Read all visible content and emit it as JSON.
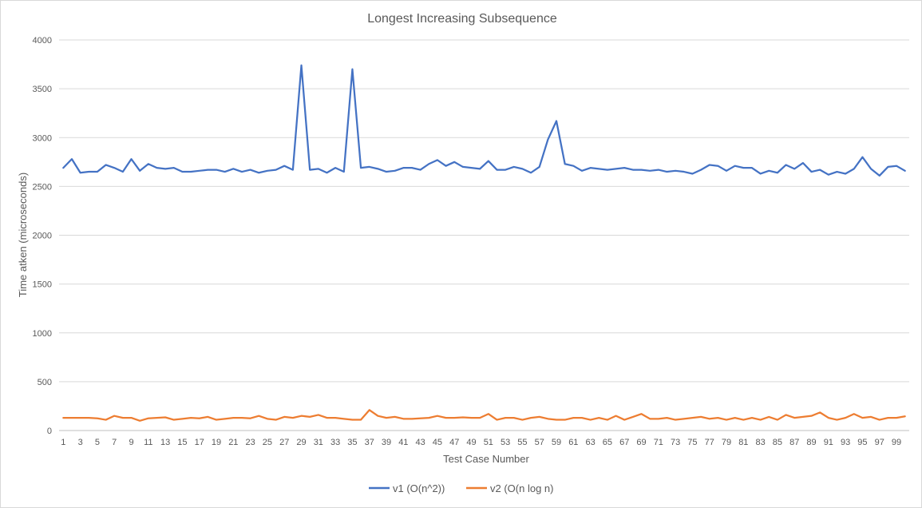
{
  "chart_data": {
    "type": "line",
    "title": "Longest Increasing Subsequence",
    "xlabel": "Test Case Number",
    "ylabel": "Time atken (microseconds)",
    "ylim": [
      0,
      4000
    ],
    "yticks": [
      0,
      500,
      1000,
      1500,
      2000,
      2500,
      3000,
      3500,
      4000
    ],
    "x": [
      1,
      2,
      3,
      4,
      5,
      6,
      7,
      8,
      9,
      10,
      11,
      12,
      13,
      14,
      15,
      16,
      17,
      18,
      19,
      20,
      21,
      22,
      23,
      24,
      25,
      26,
      27,
      28,
      29,
      30,
      31,
      32,
      33,
      34,
      35,
      36,
      37,
      38,
      39,
      40,
      41,
      42,
      43,
      44,
      45,
      46,
      47,
      48,
      49,
      50,
      51,
      52,
      53,
      54,
      55,
      56,
      57,
      58,
      59,
      60,
      61,
      62,
      63,
      64,
      65,
      66,
      67,
      68,
      69,
      70,
      71,
      72,
      73,
      74,
      75,
      76,
      77,
      78,
      79,
      80,
      81,
      82,
      83,
      84,
      85,
      86,
      87,
      88,
      89,
      90,
      91,
      92,
      93,
      94,
      95,
      96,
      97,
      98,
      99,
      100
    ],
    "xtick_labels": [
      "1",
      "3",
      "5",
      "7",
      "9",
      "11",
      "13",
      "15",
      "17",
      "19",
      "21",
      "23",
      "25",
      "27",
      "29",
      "31",
      "33",
      "35",
      "37",
      "39",
      "41",
      "43",
      "45",
      "47",
      "49",
      "51",
      "53",
      "55",
      "57",
      "59",
      "61",
      "63",
      "65",
      "67",
      "69",
      "71",
      "73",
      "75",
      "77",
      "79",
      "81",
      "83",
      "85",
      "87",
      "89",
      "91",
      "93",
      "95",
      "97",
      "99"
    ],
    "grid": true,
    "legend_position": "bottom",
    "series": [
      {
        "name": "v1 (O(n^2))",
        "color": "#4472c4",
        "values": [
          2690,
          2780,
          2640,
          2650,
          2650,
          2720,
          2690,
          2650,
          2780,
          2660,
          2730,
          2690,
          2680,
          2690,
          2650,
          2650,
          2660,
          2670,
          2670,
          2650,
          2680,
          2650,
          2670,
          2640,
          2660,
          2670,
          2710,
          2670,
          3740,
          2670,
          2680,
          2640,
          2690,
          2650,
          3700,
          2690,
          2700,
          2680,
          2650,
          2660,
          2690,
          2690,
          2670,
          2730,
          2770,
          2710,
          2750,
          2700,
          2690,
          2680,
          2760,
          2670,
          2670,
          2700,
          2680,
          2640,
          2700,
          2980,
          3170,
          2730,
          2710,
          2660,
          2690,
          2680,
          2670,
          2680,
          2690,
          2670,
          2670,
          2660,
          2670,
          2650,
          2660,
          2650,
          2630,
          2670,
          2720,
          2710,
          2660,
          2710,
          2690,
          2690,
          2630,
          2660,
          2640,
          2720,
          2680,
          2740,
          2650,
          2670,
          2620,
          2650,
          2630,
          2680,
          2800,
          2680,
          2610,
          2700,
          2710,
          2660
        ]
      },
      {
        "name": "v2 (O(n log n)",
        "color": "#ed7d31",
        "values": [
          130,
          130,
          130,
          130,
          125,
          110,
          150,
          130,
          130,
          100,
          125,
          130,
          135,
          110,
          120,
          130,
          125,
          140,
          110,
          120,
          130,
          130,
          125,
          150,
          120,
          110,
          140,
          130,
          150,
          140,
          160,
          130,
          130,
          120,
          110,
          110,
          210,
          150,
          130,
          140,
          120,
          120,
          125,
          130,
          150,
          130,
          130,
          135,
          130,
          130,
          170,
          110,
          130,
          130,
          110,
          130,
          140,
          120,
          110,
          110,
          130,
          130,
          110,
          130,
          110,
          150,
          110,
          140,
          170,
          120,
          120,
          130,
          110,
          120,
          130,
          140,
          120,
          130,
          110,
          130,
          110,
          130,
          110,
          140,
          110,
          160,
          130,
          140,
          150,
          185,
          130,
          110,
          130,
          170,
          130,
          140,
          110,
          130,
          130,
          145
        ]
      }
    ]
  }
}
